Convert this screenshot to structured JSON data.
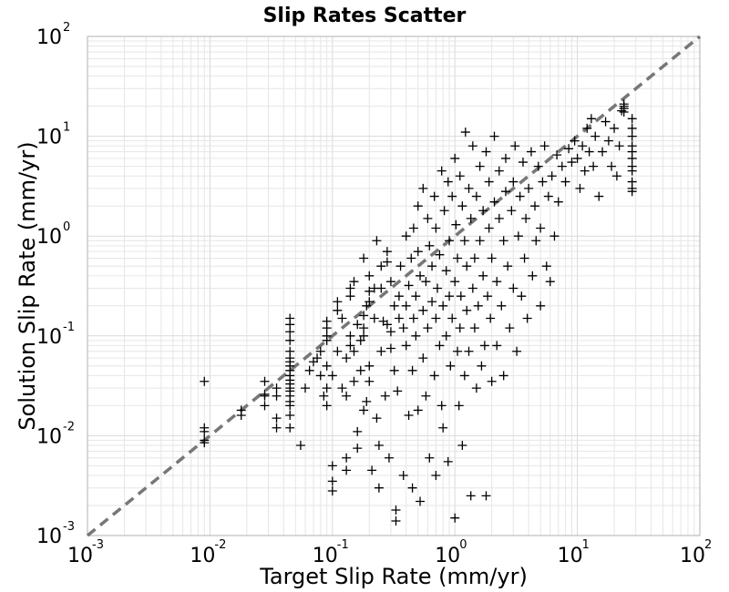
{
  "chart_data": {
    "type": "scatter",
    "title": "Slip Rates Scatter",
    "xlabel": "Target Slip Rate (mm/yr)",
    "ylabel": "Solution Slip Rate (mm/yr)",
    "xscale": "log",
    "yscale": "log",
    "xlim": [
      0.001,
      100
    ],
    "ylim": [
      0.001,
      100
    ],
    "grid": true,
    "marker": "+",
    "marker_color": "#000000",
    "reference_line": {
      "style": "dashed",
      "color": "#777777",
      "from": [
        0.001,
        0.001
      ],
      "to": [
        100,
        100
      ]
    },
    "x_tick_labels": [
      {
        "base": "10",
        "exp": "-3"
      },
      {
        "base": "10",
        "exp": "-2"
      },
      {
        "base": "10",
        "exp": "-1"
      },
      {
        "base": "10",
        "exp": "0"
      },
      {
        "base": "10",
        "exp": "1"
      },
      {
        "base": "10",
        "exp": "2"
      }
    ],
    "y_tick_labels": [
      {
        "base": "10",
        "exp": "-3"
      },
      {
        "base": "10",
        "exp": "-2"
      },
      {
        "base": "10",
        "exp": "-1"
      },
      {
        "base": "10",
        "exp": "0"
      },
      {
        "base": "10",
        "exp": "1"
      },
      {
        "base": "10",
        "exp": "2"
      }
    ],
    "points": [
      [
        0.009,
        0.0085
      ],
      [
        0.009,
        0.009
      ],
      [
        0.009,
        0.011
      ],
      [
        0.009,
        0.012
      ],
      [
        0.009,
        0.035
      ],
      [
        0.018,
        0.016
      ],
      [
        0.018,
        0.018
      ],
      [
        0.028,
        0.025
      ],
      [
        0.028,
        0.026
      ],
      [
        0.028,
        0.02
      ],
      [
        0.028,
        0.035
      ],
      [
        0.035,
        0.025
      ],
      [
        0.035,
        0.03
      ],
      [
        0.035,
        0.015
      ],
      [
        0.035,
        0.012
      ],
      [
        0.045,
        0.02
      ],
      [
        0.045,
        0.022
      ],
      [
        0.045,
        0.025
      ],
      [
        0.045,
        0.028
      ],
      [
        0.045,
        0.03
      ],
      [
        0.045,
        0.033
      ],
      [
        0.045,
        0.036
      ],
      [
        0.045,
        0.04
      ],
      [
        0.045,
        0.045
      ],
      [
        0.045,
        0.05
      ],
      [
        0.045,
        0.055
      ],
      [
        0.045,
        0.06
      ],
      [
        0.045,
        0.07
      ],
      [
        0.045,
        0.09
      ],
      [
        0.045,
        0.11
      ],
      [
        0.045,
        0.13
      ],
      [
        0.045,
        0.15
      ],
      [
        0.045,
        0.012
      ],
      [
        0.045,
        0.016
      ],
      [
        0.055,
        0.008
      ],
      [
        0.06,
        0.03
      ],
      [
        0.065,
        0.045
      ],
      [
        0.07,
        0.055
      ],
      [
        0.075,
        0.06
      ],
      [
        0.08,
        0.07
      ],
      [
        0.08,
        0.04
      ],
      [
        0.085,
        0.025
      ],
      [
        0.09,
        0.1
      ],
      [
        0.09,
        0.12
      ],
      [
        0.09,
        0.14
      ],
      [
        0.09,
        0.09
      ],
      [
        0.09,
        0.05
      ],
      [
        0.09,
        0.03
      ],
      [
        0.09,
        0.02
      ],
      [
        0.1,
        0.005
      ],
      [
        0.1,
        0.0035
      ],
      [
        0.1,
        0.0028
      ],
      [
        0.1,
        0.04
      ],
      [
        0.11,
        0.07
      ],
      [
        0.11,
        0.18
      ],
      [
        0.11,
        0.22
      ],
      [
        0.12,
        0.03
      ],
      [
        0.12,
        0.15
      ],
      [
        0.13,
        0.006
      ],
      [
        0.13,
        0.0045
      ],
      [
        0.13,
        0.025
      ],
      [
        0.13,
        0.06
      ],
      [
        0.14,
        0.25
      ],
      [
        0.14,
        0.3
      ],
      [
        0.14,
        0.1
      ],
      [
        0.14,
        0.08
      ],
      [
        0.15,
        0.35
      ],
      [
        0.15,
        0.07
      ],
      [
        0.15,
        0.035
      ],
      [
        0.16,
        0.13
      ],
      [
        0.16,
        0.011
      ],
      [
        0.16,
        0.0075
      ],
      [
        0.17,
        0.09
      ],
      [
        0.17,
        0.045
      ],
      [
        0.18,
        0.16
      ],
      [
        0.18,
        0.12
      ],
      [
        0.18,
        0.1
      ],
      [
        0.18,
        0.6
      ],
      [
        0.18,
        0.018
      ],
      [
        0.19,
        0.022
      ],
      [
        0.19,
        0.2
      ],
      [
        0.2,
        0.22
      ],
      [
        0.2,
        0.28
      ],
      [
        0.2,
        0.4
      ],
      [
        0.2,
        0.05
      ],
      [
        0.2,
        0.035
      ],
      [
        0.21,
        0.0045
      ],
      [
        0.22,
        0.3
      ],
      [
        0.22,
        0.15
      ],
      [
        0.23,
        0.9
      ],
      [
        0.23,
        0.015
      ],
      [
        0.24,
        0.003
      ],
      [
        0.24,
        0.008
      ],
      [
        0.25,
        0.5
      ],
      [
        0.25,
        0.07
      ],
      [
        0.25,
        0.3
      ],
      [
        0.26,
        0.14
      ],
      [
        0.27,
        0.025
      ],
      [
        0.28,
        0.13
      ],
      [
        0.28,
        0.55
      ],
      [
        0.28,
        0.7
      ],
      [
        0.29,
        0.006
      ],
      [
        0.3,
        0.11
      ],
      [
        0.3,
        0.075
      ],
      [
        0.3,
        0.35
      ],
      [
        0.32,
        0.2
      ],
      [
        0.32,
        0.045
      ],
      [
        0.33,
        0.0018
      ],
      [
        0.33,
        0.0014
      ],
      [
        0.34,
        0.028
      ],
      [
        0.35,
        0.25
      ],
      [
        0.35,
        0.15
      ],
      [
        0.36,
        0.5
      ],
      [
        0.38,
        0.12
      ],
      [
        0.38,
        0.004
      ],
      [
        0.4,
        1.0
      ],
      [
        0.4,
        0.2
      ],
      [
        0.4,
        0.08
      ],
      [
        0.42,
        0.016
      ],
      [
        0.42,
        0.32
      ],
      [
        0.44,
        0.6
      ],
      [
        0.45,
        0.003
      ],
      [
        0.45,
        0.045
      ],
      [
        0.46,
        1.2
      ],
      [
        0.46,
        0.15
      ],
      [
        0.48,
        0.25
      ],
      [
        0.48,
        0.1
      ],
      [
        0.5,
        2.0
      ],
      [
        0.5,
        0.7
      ],
      [
        0.5,
        0.018
      ],
      [
        0.52,
        0.0022
      ],
      [
        0.52,
        0.4
      ],
      [
        0.55,
        3.0
      ],
      [
        0.55,
        0.18
      ],
      [
        0.55,
        0.06
      ],
      [
        0.58,
        0.35
      ],
      [
        0.58,
        0.025
      ],
      [
        0.6,
        1.5
      ],
      [
        0.6,
        0.12
      ],
      [
        0.62,
        0.006
      ],
      [
        0.62,
        0.8
      ],
      [
        0.65,
        0.5
      ],
      [
        0.65,
        0.22
      ],
      [
        0.68,
        0.04
      ],
      [
        0.68,
        2.5
      ],
      [
        0.7,
        0.004
      ],
      [
        0.7,
        1.2
      ],
      [
        0.7,
        0.15
      ],
      [
        0.72,
        0.3
      ],
      [
        0.75,
        0.08
      ],
      [
        0.75,
        0.65
      ],
      [
        0.78,
        4.5
      ],
      [
        0.78,
        0.02
      ],
      [
        0.8,
        0.2
      ],
      [
        0.8,
        0.012
      ],
      [
        0.82,
        1.8
      ],
      [
        0.85,
        0.45
      ],
      [
        0.85,
        0.1
      ],
      [
        0.88,
        3.5
      ],
      [
        0.88,
        0.0055
      ],
      [
        0.9,
        0.25
      ],
      [
        0.9,
        0.9
      ],
      [
        0.92,
        0.05
      ],
      [
        0.95,
        2.5
      ],
      [
        0.95,
        0.15
      ],
      [
        1.0,
        6.0
      ],
      [
        1.0,
        0.35
      ],
      [
        1.0,
        0.0015
      ],
      [
        1.02,
        1.3
      ],
      [
        1.05,
        0.07
      ],
      [
        1.05,
        0.6
      ],
      [
        1.08,
        0.02
      ],
      [
        1.1,
        4.0
      ],
      [
        1.1,
        0.12
      ],
      [
        1.12,
        0.25
      ],
      [
        1.15,
        2.0
      ],
      [
        1.15,
        0.008
      ],
      [
        1.2,
        0.9
      ],
      [
        1.2,
        0.04
      ],
      [
        1.22,
        11.0
      ],
      [
        1.25,
        0.18
      ],
      [
        1.25,
        0.5
      ],
      [
        1.3,
        3.0
      ],
      [
        1.3,
        0.07
      ],
      [
        1.35,
        0.0025
      ],
      [
        1.35,
        1.5
      ],
      [
        1.4,
        0.3
      ],
      [
        1.4,
        8.0
      ],
      [
        1.45,
        0.12
      ],
      [
        1.45,
        0.6
      ],
      [
        1.5,
        2.5
      ],
      [
        1.5,
        0.03
      ],
      [
        1.55,
        0.2
      ],
      [
        1.6,
        5.0
      ],
      [
        1.6,
        0.9
      ],
      [
        1.65,
        0.05
      ],
      [
        1.7,
        1.8
      ],
      [
        1.7,
        0.4
      ],
      [
        1.75,
        0.08
      ],
      [
        1.8,
        7.0
      ],
      [
        1.8,
        0.0025
      ],
      [
        1.85,
        0.25
      ],
      [
        1.9,
        3.5
      ],
      [
        1.9,
        1.2
      ],
      [
        1.95,
        0.15
      ],
      [
        2.0,
        0.6
      ],
      [
        2.0,
        0.035
      ],
      [
        2.1,
        10.0
      ],
      [
        2.1,
        2.2
      ],
      [
        2.2,
        0.35
      ],
      [
        2.2,
        0.08
      ],
      [
        2.3,
        1.5
      ],
      [
        2.3,
        4.5
      ],
      [
        2.4,
        0.2
      ],
      [
        2.5,
        0.9
      ],
      [
        2.5,
        0.04
      ],
      [
        2.6,
        6.0
      ],
      [
        2.6,
        2.8
      ],
      [
        2.7,
        0.5
      ],
      [
        2.8,
        0.12
      ],
      [
        2.9,
        1.8
      ],
      [
        3.0,
        3.5
      ],
      [
        3.0,
        0.3
      ],
      [
        3.1,
        8.0
      ],
      [
        3.2,
        0.07
      ],
      [
        3.3,
        1.0
      ],
      [
        3.4,
        2.5
      ],
      [
        3.5,
        0.25
      ],
      [
        3.6,
        5.5
      ],
      [
        3.7,
        0.6
      ],
      [
        3.8,
        1.5
      ],
      [
        3.9,
        0.15
      ],
      [
        4.0,
        3.0
      ],
      [
        4.2,
        7.0
      ],
      [
        4.3,
        0.4
      ],
      [
        4.5,
        2.0
      ],
      [
        4.6,
        0.9
      ],
      [
        4.8,
        5.0
      ],
      [
        5.0,
        0.2
      ],
      [
        5.0,
        1.2
      ],
      [
        5.2,
        3.5
      ],
      [
        5.4,
        8.0
      ],
      [
        5.6,
        0.5
      ],
      [
        5.8,
        2.5
      ],
      [
        6.0,
        0.35
      ],
      [
        6.2,
        4.0
      ],
      [
        6.5,
        1.0
      ],
      [
        6.8,
        6.5
      ],
      [
        7.0,
        2.2
      ],
      [
        7.5,
        5.0
      ],
      [
        8.0,
        3.5
      ],
      [
        8.5,
        7.5
      ],
      [
        9.0,
        5.5
      ],
      [
        9.5,
        9.0
      ],
      [
        10.0,
        6.0
      ],
      [
        10.5,
        3.0
      ],
      [
        11.0,
        8.0
      ],
      [
        11.5,
        4.5
      ],
      [
        12.0,
        12.0
      ],
      [
        12.5,
        7.0
      ],
      [
        13.0,
        15.0
      ],
      [
        13.5,
        5.0
      ],
      [
        14.0,
        10.0
      ],
      [
        15.0,
        2.5
      ],
      [
        16.0,
        7.0
      ],
      [
        17.0,
        14.0
      ],
      [
        18.0,
        9.0
      ],
      [
        19.0,
        5.0
      ],
      [
        20.0,
        12.0
      ],
      [
        21.0,
        4.0
      ],
      [
        22.0,
        8.0
      ],
      [
        23.0,
        18.0
      ],
      [
        24.0,
        20.0
      ],
      [
        24.0,
        19.0
      ],
      [
        24.0,
        21.0
      ],
      [
        24.0,
        17.5
      ],
      [
        28.0,
        15.0
      ],
      [
        28.0,
        10.0
      ],
      [
        28.0,
        8.0
      ],
      [
        28.0,
        6.0
      ],
      [
        28.0,
        4.5
      ],
      [
        28.0,
        3.5
      ],
      [
        28.0,
        2.8
      ],
      [
        28.0,
        12.0
      ],
      [
        28.0,
        7.0
      ],
      [
        28.0,
        5.0
      ],
      [
        28.0,
        3.0
      ]
    ]
  }
}
